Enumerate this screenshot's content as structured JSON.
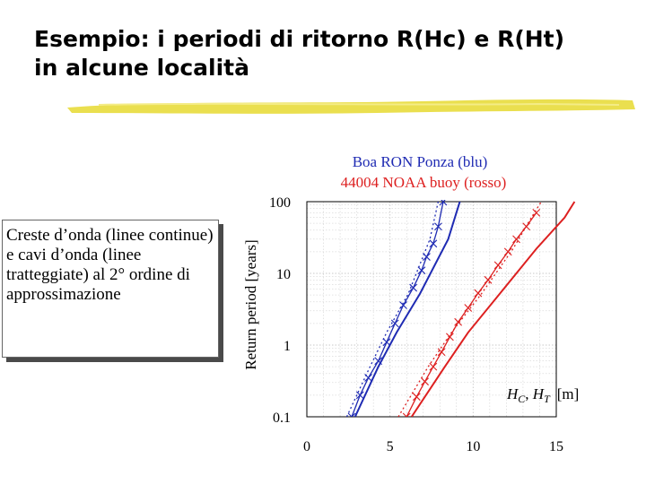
{
  "slide": {
    "title_line1": "Esempio: i periodi di ritorno R(Hc) e R(Ht)",
    "title_line2": "in alcune località",
    "note": "Creste d’onda (linee continue) e cavi d’onda (linee tratteggiate) al 2° ordine di approssimazione"
  },
  "colors": {
    "blue": "#1f2bb3",
    "red": "#dd2020",
    "highlight": "#e8dc3c"
  },
  "chart_data": {
    "type": "line",
    "title": "",
    "legend": [
      {
        "text": "Boa RON Ponza (blu)",
        "color": "#1f2bb3"
      },
      {
        "text": "44004 NOAA buoy (rosso)",
        "color": "#dd2020"
      }
    ],
    "ylabel": "Return period [years]",
    "xlabel_parts": {
      "a": "H",
      "a_sub": "C",
      "sep": ", ",
      "b": "H",
      "b_sub": "T",
      "unit": "[m]"
    },
    "x_range": [
      0,
      15
    ],
    "y_range": [
      0.1,
      100
    ],
    "y_scale": "log",
    "x_ticks": [
      0,
      5,
      10,
      15
    ],
    "y_ticks": [
      0.1,
      1,
      10,
      100
    ],
    "y_tick_labels": [
      "0.1",
      "1",
      "10",
      "100"
    ],
    "grid": true,
    "series": [
      {
        "color": "#1f2bb3",
        "style": "solid",
        "points": [
          [
            2.9,
            0.1
          ],
          [
            4.3,
            0.5
          ],
          [
            5.4,
            1.5
          ],
          [
            6.8,
            5.2
          ],
          [
            8.5,
            30
          ],
          [
            9.2,
            100
          ]
        ]
      },
      {
        "color": "#1f2bb3",
        "style": "dotted",
        "points": [
          [
            2.4,
            0.1
          ],
          [
            3.8,
            0.5
          ],
          [
            4.8,
            1.5
          ],
          [
            6.1,
            5.2
          ],
          [
            7.4,
            30
          ],
          [
            7.9,
            100
          ]
        ]
      },
      {
        "color": "#1f2bb3",
        "style": "crosses",
        "points": [
          [
            2.7,
            0.1
          ],
          [
            3.2,
            0.2
          ],
          [
            3.7,
            0.35
          ],
          [
            4.3,
            0.6
          ],
          [
            4.8,
            1.1
          ],
          [
            5.3,
            2.0
          ],
          [
            5.8,
            3.6
          ],
          [
            6.4,
            6.3
          ],
          [
            6.9,
            11
          ],
          [
            7.2,
            17
          ],
          [
            7.6,
            26
          ],
          [
            7.9,
            45
          ],
          [
            8.2,
            100
          ]
        ]
      },
      {
        "color": "#dd2020",
        "style": "solid",
        "points": [
          [
            6.3,
            0.1
          ],
          [
            8.3,
            0.5
          ],
          [
            9.7,
            1.5
          ],
          [
            11.6,
            5.2
          ],
          [
            13.8,
            22
          ],
          [
            15.5,
            60
          ],
          [
            16.1,
            100
          ]
        ]
      },
      {
        "color": "#dd2020",
        "style": "dotted",
        "points": [
          [
            5.5,
            0.1
          ],
          [
            7.3,
            0.5
          ],
          [
            8.7,
            1.5
          ],
          [
            10.5,
            5.2
          ],
          [
            12.4,
            22
          ],
          [
            13.5,
            60
          ],
          [
            14.1,
            100
          ]
        ]
      },
      {
        "color": "#dd2020",
        "style": "crosses",
        "points": [
          [
            6.0,
            0.1
          ],
          [
            6.6,
            0.19
          ],
          [
            7.1,
            0.31
          ],
          [
            7.6,
            0.5
          ],
          [
            8.1,
            0.8
          ],
          [
            8.6,
            1.3
          ],
          [
            9.1,
            2.1
          ],
          [
            9.7,
            3.3
          ],
          [
            10.3,
            5.3
          ],
          [
            10.9,
            8.1
          ],
          [
            11.5,
            13
          ],
          [
            12.1,
            20
          ],
          [
            12.6,
            30
          ],
          [
            13.2,
            45
          ],
          [
            13.8,
            70
          ]
        ]
      }
    ]
  }
}
